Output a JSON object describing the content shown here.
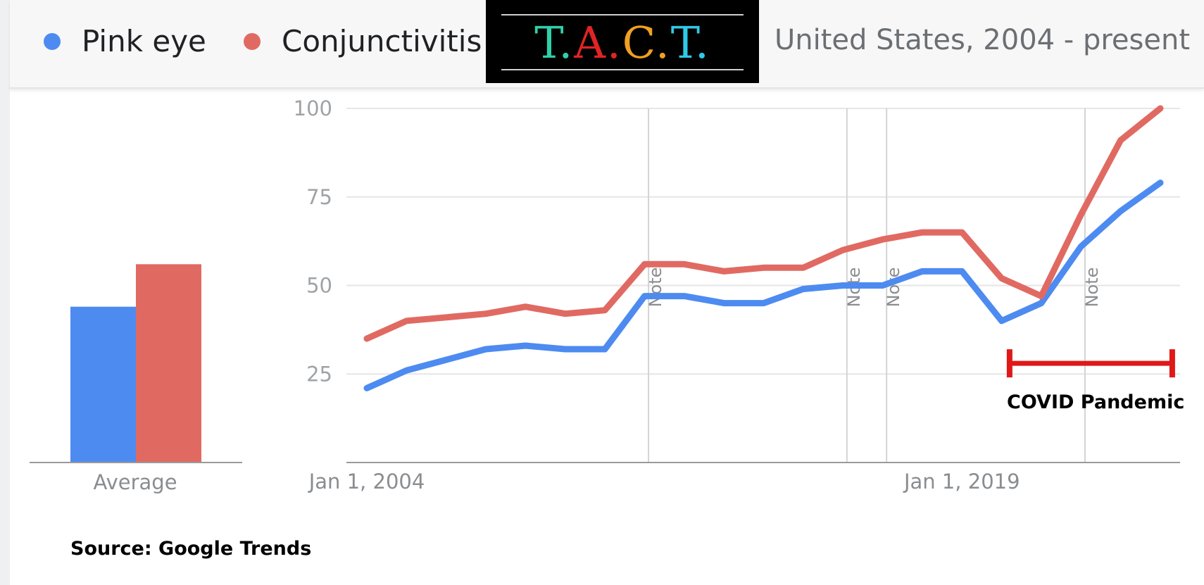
{
  "legend": {
    "items": [
      {
        "label": "Pink eye",
        "color": "#4d8bf0"
      },
      {
        "label": "Conjunctivitis",
        "color": "#e06a62"
      }
    ],
    "region": "United States, 2004 - present"
  },
  "logo": {
    "text": "T.A.C.T.",
    "letter_colors": [
      "#2fd0a8",
      "#e02424",
      "#f0a021",
      "#2fc8e8"
    ]
  },
  "source": "Source: Google Trends",
  "chart_data": [
    {
      "type": "bar",
      "categories": [
        "Average"
      ],
      "series": [
        {
          "name": "Pink eye",
          "values": [
            44
          ]
        },
        {
          "name": "Conjunctivitis",
          "values": [
            56
          ]
        }
      ],
      "ylim": [
        0,
        100
      ],
      "colors": [
        "#4d8bf0",
        "#e06a62"
      ]
    },
    {
      "type": "line",
      "x": [
        2004,
        2005,
        2006,
        2007,
        2008,
        2009,
        2010,
        2011,
        2012,
        2013,
        2014,
        2015,
        2016,
        2017,
        2018,
        2019,
        2020,
        2021,
        2022,
        2023,
        2024
      ],
      "series": [
        {
          "name": "Pink eye",
          "color": "#4d8bf0",
          "values": [
            21,
            26,
            29,
            32,
            33,
            32,
            32,
            47,
            47,
            45,
            45,
            49,
            50,
            50,
            54,
            54,
            40,
            45,
            61,
            71,
            79
          ]
        },
        {
          "name": "Conjunctivitis",
          "color": "#e06a62",
          "values": [
            35,
            40,
            41,
            42,
            44,
            42,
            43,
            56,
            56,
            54,
            55,
            55,
            60,
            63,
            65,
            65,
            52,
            47,
            70,
            91,
            100
          ]
        }
      ],
      "ylim": [
        0,
        100
      ],
      "yticks": [
        25,
        50,
        75,
        100
      ],
      "xtick_labels": [
        {
          "x": 2004,
          "label": "Jan 1, 2004"
        },
        {
          "x": 2019,
          "label": "Jan 1, 2019"
        }
      ],
      "notes": [
        {
          "x": 2011.1,
          "label": "Note"
        },
        {
          "x": 2016.1,
          "label": "Note"
        },
        {
          "x": 2017.1,
          "label": "Note"
        },
        {
          "x": 2022.1,
          "label": "Note"
        }
      ],
      "annotation": {
        "label": "COVID Pandemic",
        "x_start": 2020.2,
        "x_end": 2024.3,
        "y": 28,
        "color": "#e01818"
      }
    }
  ]
}
